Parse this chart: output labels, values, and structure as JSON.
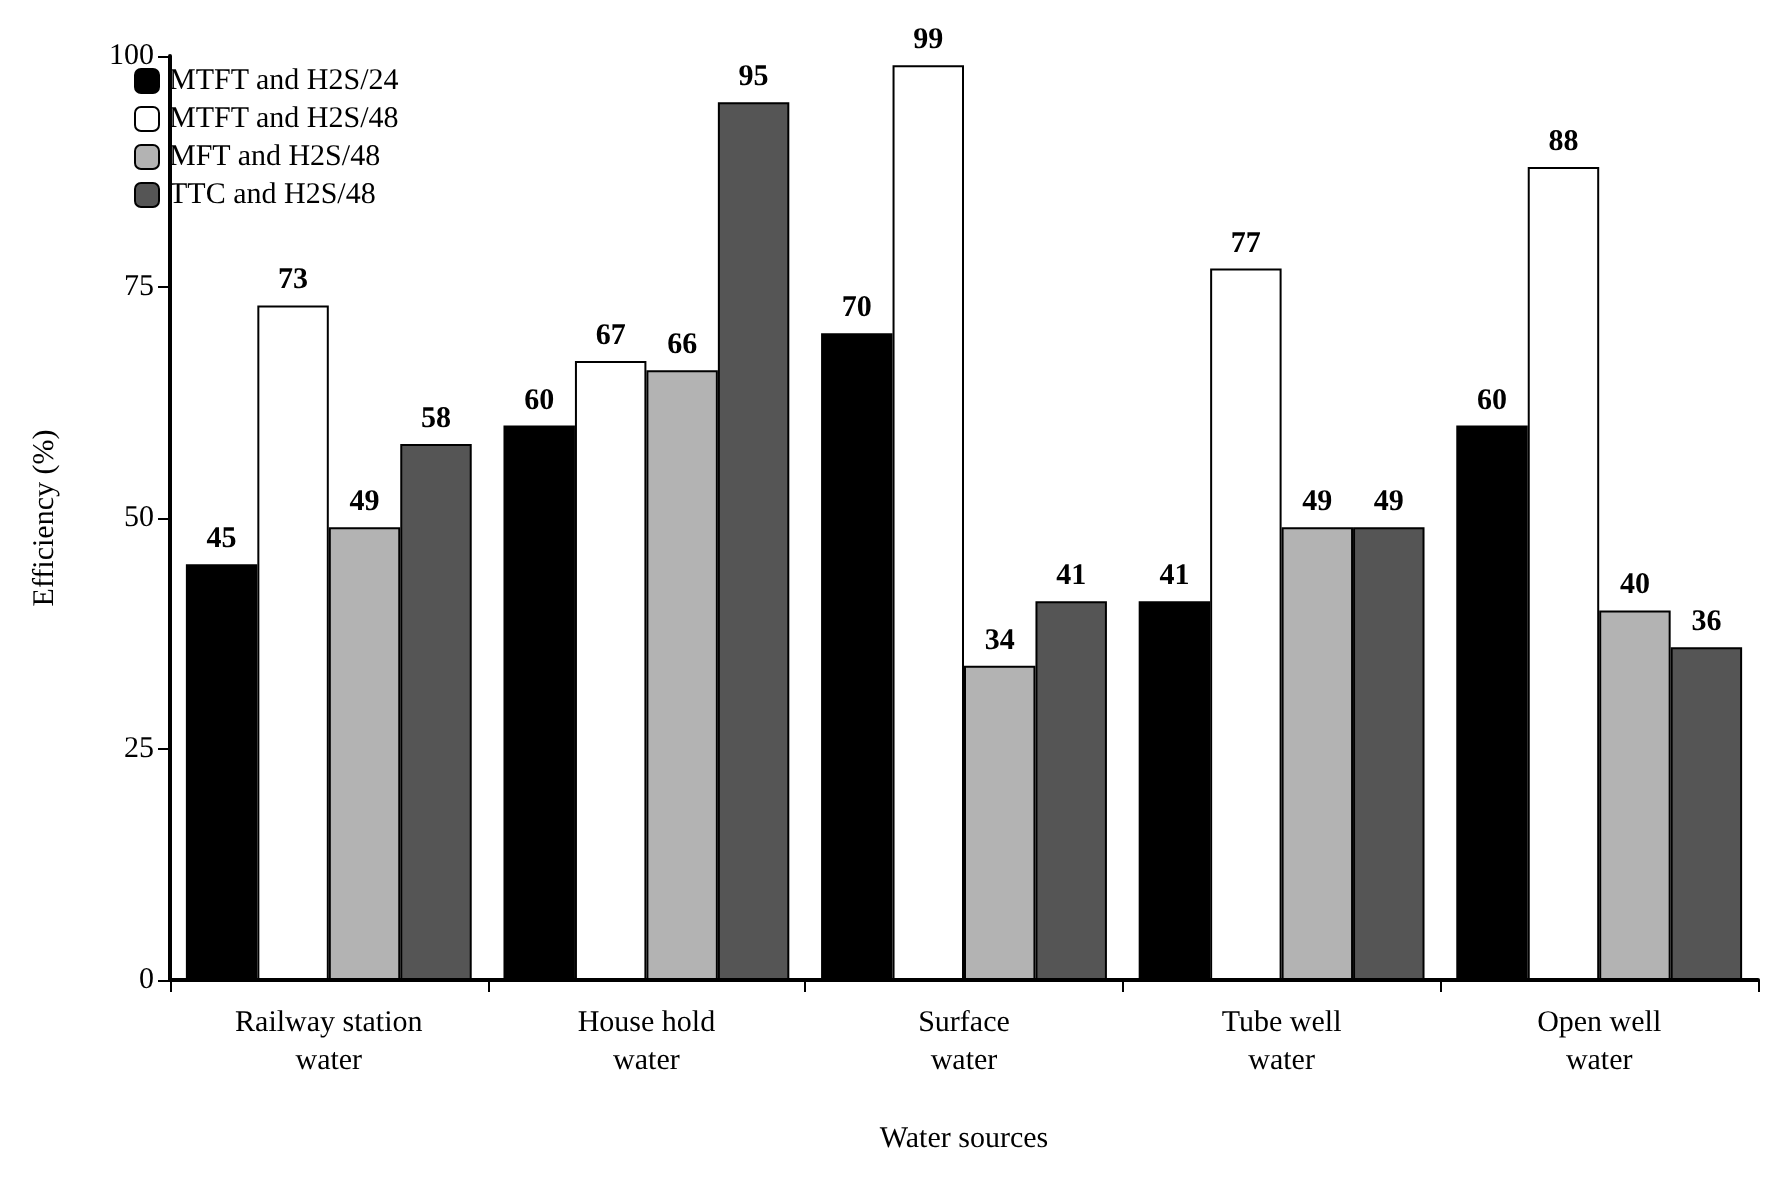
{
  "chart_data": {
    "type": "bar",
    "xlabel": "Water sources",
    "ylabel": "Efficiency (%)",
    "categories": [
      "Railway station\nwater",
      "House hold\nwater",
      "Surface\nwater",
      "Tube well\nwater",
      "Open well\nwater"
    ],
    "series": [
      {
        "name": "MTFT and H2S/24",
        "color": "#000000",
        "values": [
          45,
          60,
          70,
          41,
          60
        ]
      },
      {
        "name": "MTFT and H2S/48",
        "color": "#ffffff",
        "values": [
          73,
          67,
          99,
          77,
          88
        ]
      },
      {
        "name": "MFT and H2S/48",
        "color": "#b3b3b3",
        "values": [
          49,
          66,
          34,
          49,
          40
        ]
      },
      {
        "name": "TTC and H2S/48",
        "color": "#555555",
        "values": [
          58,
          95,
          41,
          49,
          36
        ]
      }
    ],
    "ylim": [
      0,
      100
    ],
    "yticks": [
      0,
      25,
      50,
      75,
      100
    ],
    "grid": false,
    "legend": "top left",
    "data_labels": true
  }
}
